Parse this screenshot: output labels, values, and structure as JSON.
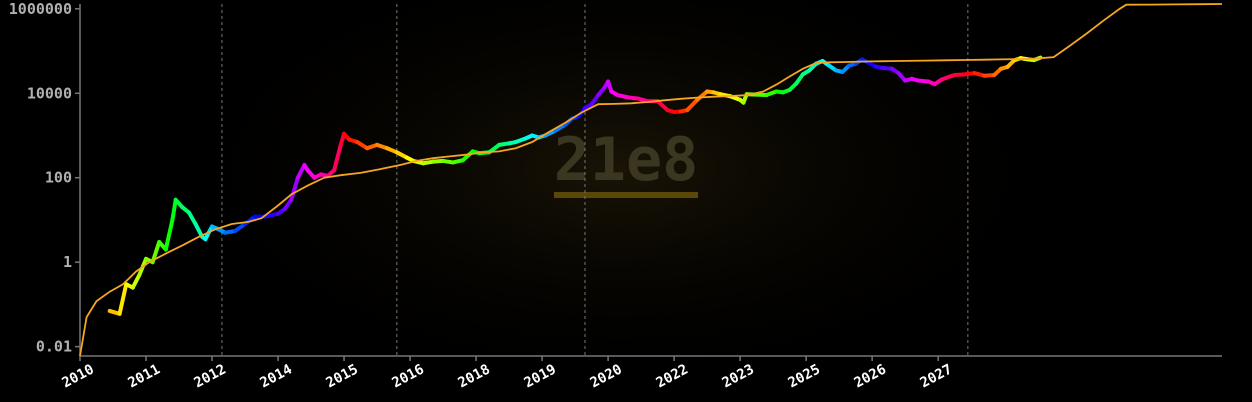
{
  "chart_data": {
    "type": "line",
    "title": "",
    "xlabel": "",
    "ylabel": "",
    "y_scale": "log",
    "ylim": [
      0.006,
      1300000
    ],
    "xlim": [
      2010.0,
      2027.3
    ],
    "grid": false,
    "watermark": "21e8",
    "y_ticks": [
      {
        "value": 0.01,
        "label": "0.01"
      },
      {
        "value": 1,
        "label": "1"
      },
      {
        "value": 100,
        "label": "100"
      },
      {
        "value": 10000,
        "label": "10000"
      },
      {
        "value": 1000000,
        "label": "1000000"
      }
    ],
    "x_ticks": [
      {
        "value": 2010.0,
        "label": "2010"
      },
      {
        "value": 2011.0,
        "label": "2011"
      },
      {
        "value": 2012.0,
        "label": "2012"
      },
      {
        "value": 2013.0,
        "label": "2014"
      },
      {
        "value": 2014.0,
        "label": "2015"
      },
      {
        "value": 2015.0,
        "label": "2016"
      },
      {
        "value": 2016.0,
        "label": "2018"
      },
      {
        "value": 2017.0,
        "label": "2019"
      },
      {
        "value": 2018.0,
        "label": "2020"
      },
      {
        "value": 2019.0,
        "label": "2022"
      },
      {
        "value": 2020.0,
        "label": "2023"
      },
      {
        "value": 2021.0,
        "label": "2025"
      },
      {
        "value": 2022.0,
        "label": "2026"
      },
      {
        "value": 2023.0,
        "label": "2027"
      }
    ],
    "vertical_markers": [
      2012.15,
      2014.8,
      2017.65,
      2023.45
    ],
    "series": [
      {
        "style": "rainbow-price",
        "points": [
          [
            2010.45,
            0.07
          ],
          [
            2010.6,
            0.06
          ],
          [
            2010.7,
            0.3
          ],
          [
            2010.8,
            0.25
          ],
          [
            2010.9,
            0.5
          ],
          [
            2011.0,
            1.2
          ],
          [
            2011.1,
            1.0
          ],
          [
            2011.2,
            3
          ],
          [
            2011.3,
            2
          ],
          [
            2011.4,
            10
          ],
          [
            2011.45,
            30
          ],
          [
            2011.55,
            20
          ],
          [
            2011.65,
            15
          ],
          [
            2011.75,
            8
          ],
          [
            2011.85,
            4
          ],
          [
            2011.9,
            3.5
          ],
          [
            2011.95,
            5
          ],
          [
            2012.0,
            7
          ],
          [
            2012.1,
            6
          ],
          [
            2012.2,
            5
          ],
          [
            2012.35,
            5.5
          ],
          [
            2012.5,
            8
          ],
          [
            2012.65,
            12
          ],
          [
            2012.8,
            12
          ],
          [
            2013.0,
            14
          ],
          [
            2013.1,
            18
          ],
          [
            2013.2,
            30
          ],
          [
            2013.3,
            100
          ],
          [
            2013.4,
            200
          ],
          [
            2013.45,
            150
          ],
          [
            2013.55,
            100
          ],
          [
            2013.65,
            120
          ],
          [
            2013.75,
            110
          ],
          [
            2013.85,
            150
          ],
          [
            2013.95,
            600
          ],
          [
            2014.0,
            1100
          ],
          [
            2014.08,
            800
          ],
          [
            2014.2,
            700
          ],
          [
            2014.35,
            500
          ],
          [
            2014.5,
            600
          ],
          [
            2014.65,
            500
          ],
          [
            2014.8,
            400
          ],
          [
            2014.95,
            300
          ],
          [
            2015.05,
            250
          ],
          [
            2015.2,
            220
          ],
          [
            2015.35,
            240
          ],
          [
            2015.5,
            250
          ],
          [
            2015.65,
            230
          ],
          [
            2015.8,
            260
          ],
          [
            2015.95,
            420
          ],
          [
            2016.05,
            380
          ],
          [
            2016.2,
            400
          ],
          [
            2016.35,
            600
          ],
          [
            2016.5,
            650
          ],
          [
            2016.6,
            700
          ],
          [
            2016.75,
            850
          ],
          [
            2016.85,
            1000
          ],
          [
            2016.95,
            900
          ],
          [
            2017.05,
            1000
          ],
          [
            2017.2,
            1300
          ],
          [
            2017.35,
            1800
          ],
          [
            2017.45,
            2500
          ],
          [
            2017.55,
            2800
          ],
          [
            2017.6,
            3500
          ],
          [
            2017.65,
            4500
          ],
          [
            2017.75,
            5500
          ],
          [
            2017.85,
            9000
          ],
          [
            2017.95,
            14000
          ],
          [
            2018.0,
            19000
          ],
          [
            2018.05,
            11000
          ],
          [
            2018.15,
            9000
          ],
          [
            2018.3,
            8000
          ],
          [
            2018.45,
            7500
          ],
          [
            2018.6,
            6500
          ],
          [
            2018.75,
            6500
          ],
          [
            2018.9,
            4000
          ],
          [
            2019.0,
            3600
          ],
          [
            2019.1,
            3700
          ],
          [
            2019.2,
            4000
          ],
          [
            2019.35,
            7000
          ],
          [
            2019.5,
            11000
          ],
          [
            2019.6,
            10500
          ],
          [
            2019.7,
            9500
          ],
          [
            2019.85,
            8500
          ],
          [
            2020.0,
            7000
          ],
          [
            2020.05,
            6000
          ],
          [
            2020.1,
            9500
          ],
          [
            2020.25,
            9300
          ],
          [
            2020.4,
            9100
          ],
          [
            2020.55,
            11000
          ],
          [
            2020.65,
            10500
          ],
          [
            2020.75,
            12000
          ],
          [
            2020.85,
            17000
          ],
          [
            2020.95,
            28000
          ],
          [
            2021.05,
            35000
          ],
          [
            2021.15,
            50000
          ],
          [
            2021.25,
            58000
          ],
          [
            2021.35,
            45000
          ],
          [
            2021.45,
            35000
          ],
          [
            2021.55,
            32000
          ],
          [
            2021.65,
            45000
          ],
          [
            2021.75,
            50000
          ],
          [
            2021.85,
            63000
          ],
          [
            2021.95,
            52000
          ],
          [
            2022.05,
            43000
          ],
          [
            2022.15,
            40000
          ],
          [
            2022.3,
            38000
          ],
          [
            2022.4,
            30000
          ],
          [
            2022.5,
            20000
          ],
          [
            2022.6,
            22000
          ],
          [
            2022.7,
            20000
          ],
          [
            2022.85,
            19000
          ],
          [
            2022.95,
            16500
          ],
          [
            2023.05,
            21000
          ],
          [
            2023.15,
            24000
          ],
          [
            2023.25,
            27000
          ],
          [
            2023.4,
            28000
          ],
          [
            2023.55,
            30000
          ],
          [
            2023.7,
            26000
          ],
          [
            2023.85,
            27000
          ],
          [
            2023.95,
            38000
          ],
          [
            2024.05,
            42000
          ],
          [
            2024.15,
            60000
          ],
          [
            2024.25,
            68000
          ],
          [
            2024.35,
            64000
          ],
          [
            2024.45,
            61000
          ],
          [
            2024.55,
            70000
          ]
        ]
      },
      {
        "style": "orange-line",
        "color": "#f5a623",
        "points": [
          [
            2010.0,
            0.006
          ],
          [
            2010.1,
            0.05
          ],
          [
            2010.25,
            0.12
          ],
          [
            2010.45,
            0.2
          ],
          [
            2010.65,
            0.3
          ],
          [
            2010.85,
            0.6
          ],
          [
            2011.05,
            1.0
          ],
          [
            2011.3,
            1.6
          ],
          [
            2011.55,
            2.5
          ],
          [
            2011.8,
            4
          ],
          [
            2012.05,
            6
          ],
          [
            2012.3,
            8
          ],
          [
            2012.55,
            9
          ],
          [
            2012.75,
            11
          ],
          [
            2013.0,
            22
          ],
          [
            2013.2,
            40
          ],
          [
            2013.45,
            65
          ],
          [
            2013.7,
            100
          ],
          [
            2013.95,
            115
          ],
          [
            2014.25,
            130
          ],
          [
            2014.55,
            160
          ],
          [
            2014.85,
            200
          ],
          [
            2015.1,
            250
          ],
          [
            2015.35,
            290
          ],
          [
            2015.6,
            320
          ],
          [
            2015.85,
            350
          ],
          [
            2016.1,
            400
          ],
          [
            2016.35,
            420
          ],
          [
            2016.6,
            500
          ],
          [
            2016.85,
            700
          ],
          [
            2017.1,
            1200
          ],
          [
            2017.35,
            2000
          ],
          [
            2017.6,
            3500
          ],
          [
            2017.85,
            5500
          ],
          [
            2018.1,
            5600
          ],
          [
            2018.35,
            5800
          ],
          [
            2018.6,
            6200
          ],
          [
            2018.85,
            6800
          ],
          [
            2019.1,
            7400
          ],
          [
            2019.35,
            7900
          ],
          [
            2019.6,
            8300
          ],
          [
            2019.85,
            8600
          ],
          [
            2020.1,
            9000
          ],
          [
            2020.35,
            11000
          ],
          [
            2020.55,
            16000
          ],
          [
            2020.75,
            25000
          ],
          [
            2020.95,
            38000
          ],
          [
            2021.15,
            52000
          ],
          [
            2021.35,
            54000
          ],
          [
            2021.6,
            55000
          ],
          [
            2021.9,
            56500
          ],
          [
            2022.2,
            57500
          ],
          [
            2022.5,
            58500
          ],
          [
            2022.8,
            59500
          ],
          [
            2023.1,
            60500
          ],
          [
            2023.4,
            61500
          ],
          [
            2023.7,
            62500
          ],
          [
            2023.95,
            63500
          ],
          [
            2024.2,
            64500
          ],
          [
            2024.45,
            66000
          ],
          [
            2024.75,
            72000
          ],
          [
            2025.0,
            135000
          ],
          [
            2025.25,
            260000
          ],
          [
            2025.5,
            520000
          ],
          [
            2025.75,
            1000000
          ],
          [
            2025.85,
            1250000
          ],
          [
            2026.2,
            1260000
          ],
          [
            2026.6,
            1270000
          ],
          [
            2027.0,
            1285000
          ],
          [
            2027.3,
            1300000
          ]
        ]
      }
    ]
  }
}
